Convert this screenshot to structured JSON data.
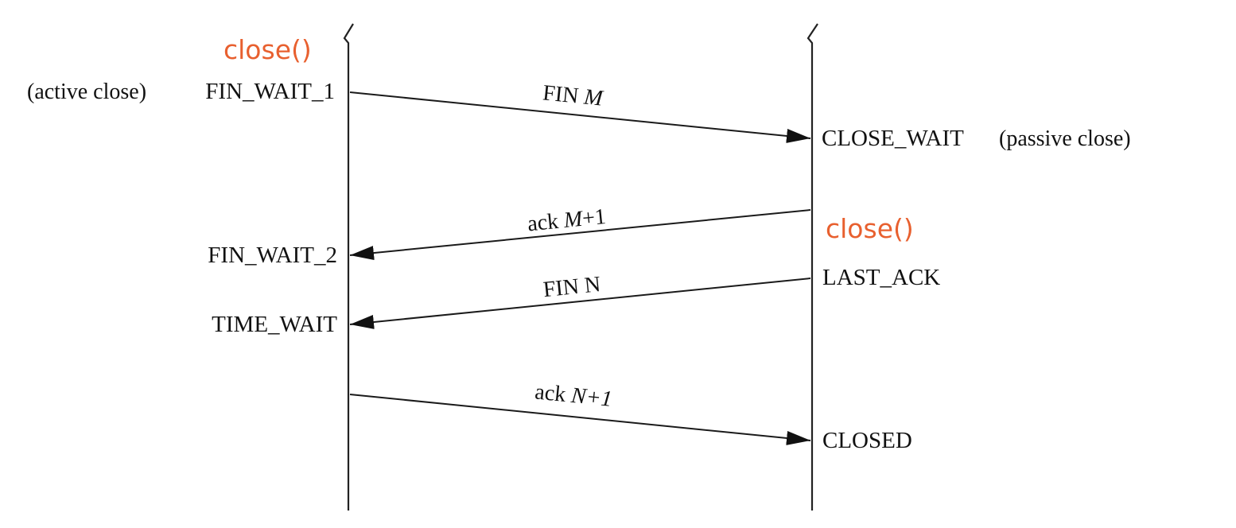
{
  "left_endpoint": {
    "call": "close()",
    "note": "(active close)",
    "states": {
      "fin_wait_1": "FIN_WAIT_1",
      "fin_wait_2": "FIN_WAIT_2",
      "time_wait": "TIME_WAIT"
    }
  },
  "right_endpoint": {
    "call": "close()",
    "note": "(passive close)",
    "states": {
      "close_wait": "CLOSE_WAIT",
      "last_ack": "LAST_ACK",
      "closed": "CLOSED"
    }
  },
  "messages": {
    "fin_m": {
      "prefix": "FIN ",
      "var": "M",
      "suffix": ""
    },
    "ack_m1": {
      "prefix": "ack ",
      "var": "M",
      "suffix": "+1"
    },
    "fin_n": {
      "prefix": "FIN N",
      "var": "",
      "suffix": ""
    },
    "ack_n1": {
      "prefix": "ack ",
      "var": "N+1",
      "suffix": ""
    }
  },
  "colors": {
    "close_call": "#e8602f",
    "lines": "#222222"
  }
}
